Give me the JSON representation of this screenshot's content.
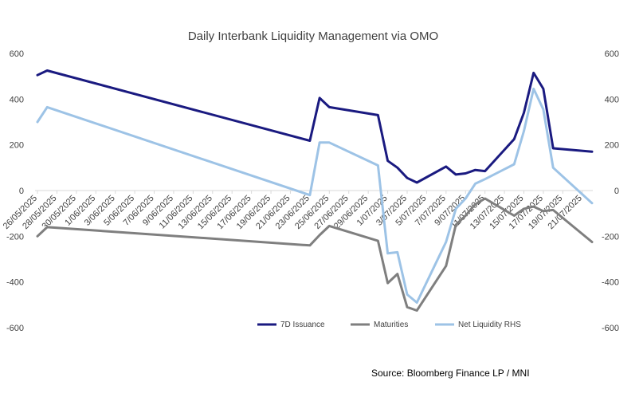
{
  "chart_data": {
    "type": "line",
    "title": "Daily Interbank Liquidity Management via OMO",
    "source": "Source: Bloomberg Finance LP / MNI",
    "x_tick_labels": [
      "26/05/2025",
      "28/05/2025",
      "30/05/2025",
      "1/06/2025",
      "3/06/2025",
      "5/06/2025",
      "7/06/2025",
      "9/06/2025",
      "11/06/2025",
      "13/06/2025",
      "15/06/2025",
      "17/06/2025",
      "19/06/2025",
      "21/06/2025",
      "23/06/2025",
      "25/06/2025",
      "27/06/2025",
      "29/06/2025",
      "1/07/2025",
      "3/07/2025",
      "5/07/2025",
      "7/07/2025",
      "9/07/2025",
      "11/07/2025",
      "13/07/2025",
      "15/07/2025",
      "17/07/2025",
      "19/07/2025",
      "21/07/2025"
    ],
    "x_range": [
      "26/05/2025",
      "22/07/2025"
    ],
    "y_left_ticks": [
      600,
      400,
      200,
      0,
      -200,
      -400,
      -600
    ],
    "y_right_ticks": [
      600,
      400,
      200,
      0,
      -200,
      -400,
      -600
    ],
    "ylim": [
      -600,
      600
    ],
    "grid": false,
    "legend_position": "bottom-right",
    "series": [
      {
        "name": "7D Issuance",
        "color": "#1a1a80",
        "points": [
          [
            "26/05/2025",
            505
          ],
          [
            "27/05/2025",
            525
          ],
          [
            "23/06/2025",
            218
          ],
          [
            "24/06/2025",
            405
          ],
          [
            "25/06/2025",
            365
          ],
          [
            "30/06/2025",
            330
          ],
          [
            "1/07/2025",
            130
          ],
          [
            "2/07/2025",
            100
          ],
          [
            "3/07/2025",
            55
          ],
          [
            "4/07/2025",
            35
          ],
          [
            "7/07/2025",
            105
          ],
          [
            "8/07/2025",
            70
          ],
          [
            "9/07/2025",
            75
          ],
          [
            "10/07/2025",
            90
          ],
          [
            "11/07/2025",
            85
          ],
          [
            "14/07/2025",
            225
          ],
          [
            "15/07/2025",
            340
          ],
          [
            "16/07/2025",
            515
          ],
          [
            "17/07/2025",
            445
          ],
          [
            "18/07/2025",
            185
          ],
          [
            "22/07/2025",
            170
          ]
        ]
      },
      {
        "name": "Maturities",
        "color": "#7f7f7f",
        "points": [
          [
            "26/05/2025",
            -200
          ],
          [
            "27/05/2025",
            -160
          ],
          [
            "23/06/2025",
            -240
          ],
          [
            "24/06/2025",
            -195
          ],
          [
            "25/06/2025",
            -155
          ],
          [
            "30/06/2025",
            -220
          ],
          [
            "1/07/2025",
            -405
          ],
          [
            "2/07/2025",
            -365
          ],
          [
            "3/07/2025",
            -510
          ],
          [
            "4/07/2025",
            -525
          ],
          [
            "7/07/2025",
            -330
          ],
          [
            "8/07/2025",
            -150
          ],
          [
            "9/07/2025",
            -110
          ],
          [
            "10/07/2025",
            -60
          ],
          [
            "11/07/2025",
            -35
          ],
          [
            "14/07/2025",
            -110
          ],
          [
            "15/07/2025",
            -80
          ],
          [
            "16/07/2025",
            -70
          ],
          [
            "17/07/2025",
            -90
          ],
          [
            "18/07/2025",
            -85
          ],
          [
            "22/07/2025",
            -225
          ]
        ]
      },
      {
        "name": "Net Liquidity RHS",
        "color": "#9dc3e6",
        "points": [
          [
            "26/05/2025",
            300
          ],
          [
            "27/05/2025",
            365
          ],
          [
            "23/06/2025",
            -20
          ],
          [
            "24/06/2025",
            210
          ],
          [
            "25/06/2025",
            210
          ],
          [
            "30/06/2025",
            110
          ],
          [
            "1/07/2025",
            -275
          ],
          [
            "2/07/2025",
            -270
          ],
          [
            "3/07/2025",
            -455
          ],
          [
            "4/07/2025",
            -490
          ],
          [
            "7/07/2025",
            -225
          ],
          [
            "8/07/2025",
            -80
          ],
          [
            "9/07/2025",
            -35
          ],
          [
            "10/07/2025",
            30
          ],
          [
            "11/07/2025",
            50
          ],
          [
            "14/07/2025",
            115
          ],
          [
            "15/07/2025",
            260
          ],
          [
            "16/07/2025",
            445
          ],
          [
            "17/07/2025",
            355
          ],
          [
            "18/07/2025",
            100
          ],
          [
            "22/07/2025",
            -55
          ]
        ]
      }
    ]
  }
}
